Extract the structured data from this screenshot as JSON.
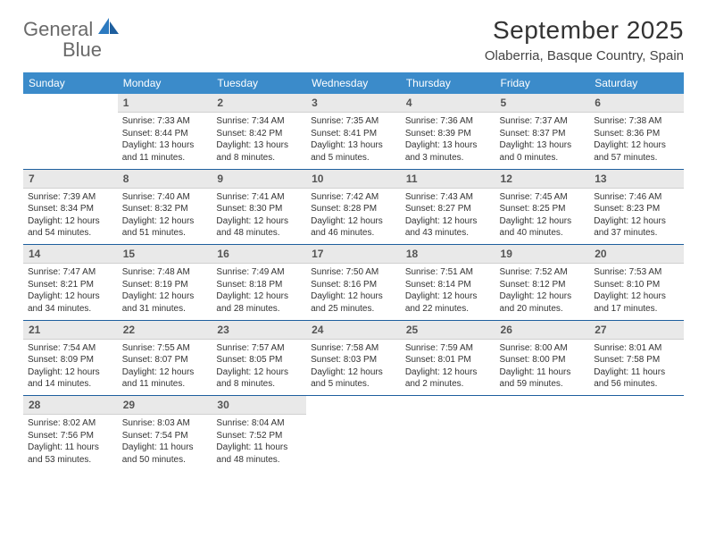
{
  "brand": {
    "name_gray": "General",
    "name_blue": "Blue"
  },
  "title": "September 2025",
  "location": "Olaberria, Basque Country, Spain",
  "colors": {
    "header_bg": "#3b8bca",
    "header_fg": "#ffffff",
    "daynum_bg": "#e9e9e9",
    "week_sep": "#1e5f9e",
    "text": "#333333"
  },
  "days_of_week": [
    "Sunday",
    "Monday",
    "Tuesday",
    "Wednesday",
    "Thursday",
    "Friday",
    "Saturday"
  ],
  "weeks": [
    [
      null,
      {
        "n": "1",
        "sr": "7:33 AM",
        "ss": "8:44 PM",
        "dl": "13 hours and 11 minutes."
      },
      {
        "n": "2",
        "sr": "7:34 AM",
        "ss": "8:42 PM",
        "dl": "13 hours and 8 minutes."
      },
      {
        "n": "3",
        "sr": "7:35 AM",
        "ss": "8:41 PM",
        "dl": "13 hours and 5 minutes."
      },
      {
        "n": "4",
        "sr": "7:36 AM",
        "ss": "8:39 PM",
        "dl": "13 hours and 3 minutes."
      },
      {
        "n": "5",
        "sr": "7:37 AM",
        "ss": "8:37 PM",
        "dl": "13 hours and 0 minutes."
      },
      {
        "n": "6",
        "sr": "7:38 AM",
        "ss": "8:36 PM",
        "dl": "12 hours and 57 minutes."
      }
    ],
    [
      {
        "n": "7",
        "sr": "7:39 AM",
        "ss": "8:34 PM",
        "dl": "12 hours and 54 minutes."
      },
      {
        "n": "8",
        "sr": "7:40 AM",
        "ss": "8:32 PM",
        "dl": "12 hours and 51 minutes."
      },
      {
        "n": "9",
        "sr": "7:41 AM",
        "ss": "8:30 PM",
        "dl": "12 hours and 48 minutes."
      },
      {
        "n": "10",
        "sr": "7:42 AM",
        "ss": "8:28 PM",
        "dl": "12 hours and 46 minutes."
      },
      {
        "n": "11",
        "sr": "7:43 AM",
        "ss": "8:27 PM",
        "dl": "12 hours and 43 minutes."
      },
      {
        "n": "12",
        "sr": "7:45 AM",
        "ss": "8:25 PM",
        "dl": "12 hours and 40 minutes."
      },
      {
        "n": "13",
        "sr": "7:46 AM",
        "ss": "8:23 PM",
        "dl": "12 hours and 37 minutes."
      }
    ],
    [
      {
        "n": "14",
        "sr": "7:47 AM",
        "ss": "8:21 PM",
        "dl": "12 hours and 34 minutes."
      },
      {
        "n": "15",
        "sr": "7:48 AM",
        "ss": "8:19 PM",
        "dl": "12 hours and 31 minutes."
      },
      {
        "n": "16",
        "sr": "7:49 AM",
        "ss": "8:18 PM",
        "dl": "12 hours and 28 minutes."
      },
      {
        "n": "17",
        "sr": "7:50 AM",
        "ss": "8:16 PM",
        "dl": "12 hours and 25 minutes."
      },
      {
        "n": "18",
        "sr": "7:51 AM",
        "ss": "8:14 PM",
        "dl": "12 hours and 22 minutes."
      },
      {
        "n": "19",
        "sr": "7:52 AM",
        "ss": "8:12 PM",
        "dl": "12 hours and 20 minutes."
      },
      {
        "n": "20",
        "sr": "7:53 AM",
        "ss": "8:10 PM",
        "dl": "12 hours and 17 minutes."
      }
    ],
    [
      {
        "n": "21",
        "sr": "7:54 AM",
        "ss": "8:09 PM",
        "dl": "12 hours and 14 minutes."
      },
      {
        "n": "22",
        "sr": "7:55 AM",
        "ss": "8:07 PM",
        "dl": "12 hours and 11 minutes."
      },
      {
        "n": "23",
        "sr": "7:57 AM",
        "ss": "8:05 PM",
        "dl": "12 hours and 8 minutes."
      },
      {
        "n": "24",
        "sr": "7:58 AM",
        "ss": "8:03 PM",
        "dl": "12 hours and 5 minutes."
      },
      {
        "n": "25",
        "sr": "7:59 AM",
        "ss": "8:01 PM",
        "dl": "12 hours and 2 minutes."
      },
      {
        "n": "26",
        "sr": "8:00 AM",
        "ss": "8:00 PM",
        "dl": "11 hours and 59 minutes."
      },
      {
        "n": "27",
        "sr": "8:01 AM",
        "ss": "7:58 PM",
        "dl": "11 hours and 56 minutes."
      }
    ],
    [
      {
        "n": "28",
        "sr": "8:02 AM",
        "ss": "7:56 PM",
        "dl": "11 hours and 53 minutes."
      },
      {
        "n": "29",
        "sr": "8:03 AM",
        "ss": "7:54 PM",
        "dl": "11 hours and 50 minutes."
      },
      {
        "n": "30",
        "sr": "8:04 AM",
        "ss": "7:52 PM",
        "dl": "11 hours and 48 minutes."
      },
      null,
      null,
      null,
      null
    ]
  ],
  "labels": {
    "sunrise": "Sunrise:",
    "sunset": "Sunset:",
    "daylight": "Daylight:"
  }
}
